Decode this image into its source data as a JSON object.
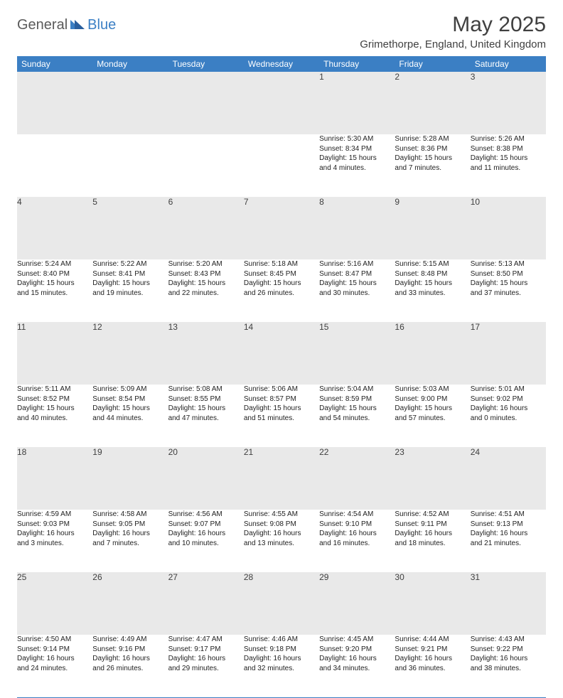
{
  "brand": {
    "part1": "General",
    "part2": "Blue"
  },
  "title": "May 2025",
  "location": "Grimethorpe, England, United Kingdom",
  "colors": {
    "header_bg": "#3b7fc4",
    "header_text": "#ffffff",
    "daynum_bg": "#e9e9e9",
    "border": "#3b7fc4",
    "text": "#222222",
    "month_title": "#404040"
  },
  "fonts": {
    "month_title_size": 30,
    "location_size": 15,
    "weekday_size": 12,
    "daynum_size": 12,
    "detail_size": 10
  },
  "weekdays": [
    "Sunday",
    "Monday",
    "Tuesday",
    "Wednesday",
    "Thursday",
    "Friday",
    "Saturday"
  ],
  "weeks": [
    [
      null,
      null,
      null,
      null,
      {
        "n": "1",
        "sunrise": "5:30 AM",
        "sunset": "8:34 PM",
        "dh": "15",
        "dm": "4"
      },
      {
        "n": "2",
        "sunrise": "5:28 AM",
        "sunset": "8:36 PM",
        "dh": "15",
        "dm": "7"
      },
      {
        "n": "3",
        "sunrise": "5:26 AM",
        "sunset": "8:38 PM",
        "dh": "15",
        "dm": "11"
      }
    ],
    [
      {
        "n": "4",
        "sunrise": "5:24 AM",
        "sunset": "8:40 PM",
        "dh": "15",
        "dm": "15"
      },
      {
        "n": "5",
        "sunrise": "5:22 AM",
        "sunset": "8:41 PM",
        "dh": "15",
        "dm": "19"
      },
      {
        "n": "6",
        "sunrise": "5:20 AM",
        "sunset": "8:43 PM",
        "dh": "15",
        "dm": "22"
      },
      {
        "n": "7",
        "sunrise": "5:18 AM",
        "sunset": "8:45 PM",
        "dh": "15",
        "dm": "26"
      },
      {
        "n": "8",
        "sunrise": "5:16 AM",
        "sunset": "8:47 PM",
        "dh": "15",
        "dm": "30"
      },
      {
        "n": "9",
        "sunrise": "5:15 AM",
        "sunset": "8:48 PM",
        "dh": "15",
        "dm": "33"
      },
      {
        "n": "10",
        "sunrise": "5:13 AM",
        "sunset": "8:50 PM",
        "dh": "15",
        "dm": "37"
      }
    ],
    [
      {
        "n": "11",
        "sunrise": "5:11 AM",
        "sunset": "8:52 PM",
        "dh": "15",
        "dm": "40"
      },
      {
        "n": "12",
        "sunrise": "5:09 AM",
        "sunset": "8:54 PM",
        "dh": "15",
        "dm": "44"
      },
      {
        "n": "13",
        "sunrise": "5:08 AM",
        "sunset": "8:55 PM",
        "dh": "15",
        "dm": "47"
      },
      {
        "n": "14",
        "sunrise": "5:06 AM",
        "sunset": "8:57 PM",
        "dh": "15",
        "dm": "51"
      },
      {
        "n": "15",
        "sunrise": "5:04 AM",
        "sunset": "8:59 PM",
        "dh": "15",
        "dm": "54"
      },
      {
        "n": "16",
        "sunrise": "5:03 AM",
        "sunset": "9:00 PM",
        "dh": "15",
        "dm": "57"
      },
      {
        "n": "17",
        "sunrise": "5:01 AM",
        "sunset": "9:02 PM",
        "dh": "16",
        "dm": "0"
      }
    ],
    [
      {
        "n": "18",
        "sunrise": "4:59 AM",
        "sunset": "9:03 PM",
        "dh": "16",
        "dm": "3"
      },
      {
        "n": "19",
        "sunrise": "4:58 AM",
        "sunset": "9:05 PM",
        "dh": "16",
        "dm": "7"
      },
      {
        "n": "20",
        "sunrise": "4:56 AM",
        "sunset": "9:07 PM",
        "dh": "16",
        "dm": "10"
      },
      {
        "n": "21",
        "sunrise": "4:55 AM",
        "sunset": "9:08 PM",
        "dh": "16",
        "dm": "13"
      },
      {
        "n": "22",
        "sunrise": "4:54 AM",
        "sunset": "9:10 PM",
        "dh": "16",
        "dm": "16"
      },
      {
        "n": "23",
        "sunrise": "4:52 AM",
        "sunset": "9:11 PM",
        "dh": "16",
        "dm": "18"
      },
      {
        "n": "24",
        "sunrise": "4:51 AM",
        "sunset": "9:13 PM",
        "dh": "16",
        "dm": "21"
      }
    ],
    [
      {
        "n": "25",
        "sunrise": "4:50 AM",
        "sunset": "9:14 PM",
        "dh": "16",
        "dm": "24"
      },
      {
        "n": "26",
        "sunrise": "4:49 AM",
        "sunset": "9:16 PM",
        "dh": "16",
        "dm": "26"
      },
      {
        "n": "27",
        "sunrise": "4:47 AM",
        "sunset": "9:17 PM",
        "dh": "16",
        "dm": "29"
      },
      {
        "n": "28",
        "sunrise": "4:46 AM",
        "sunset": "9:18 PM",
        "dh": "16",
        "dm": "32"
      },
      {
        "n": "29",
        "sunrise": "4:45 AM",
        "sunset": "9:20 PM",
        "dh": "16",
        "dm": "34"
      },
      {
        "n": "30",
        "sunrise": "4:44 AM",
        "sunset": "9:21 PM",
        "dh": "16",
        "dm": "36"
      },
      {
        "n": "31",
        "sunrise": "4:43 AM",
        "sunset": "9:22 PM",
        "dh": "16",
        "dm": "38"
      }
    ]
  ]
}
